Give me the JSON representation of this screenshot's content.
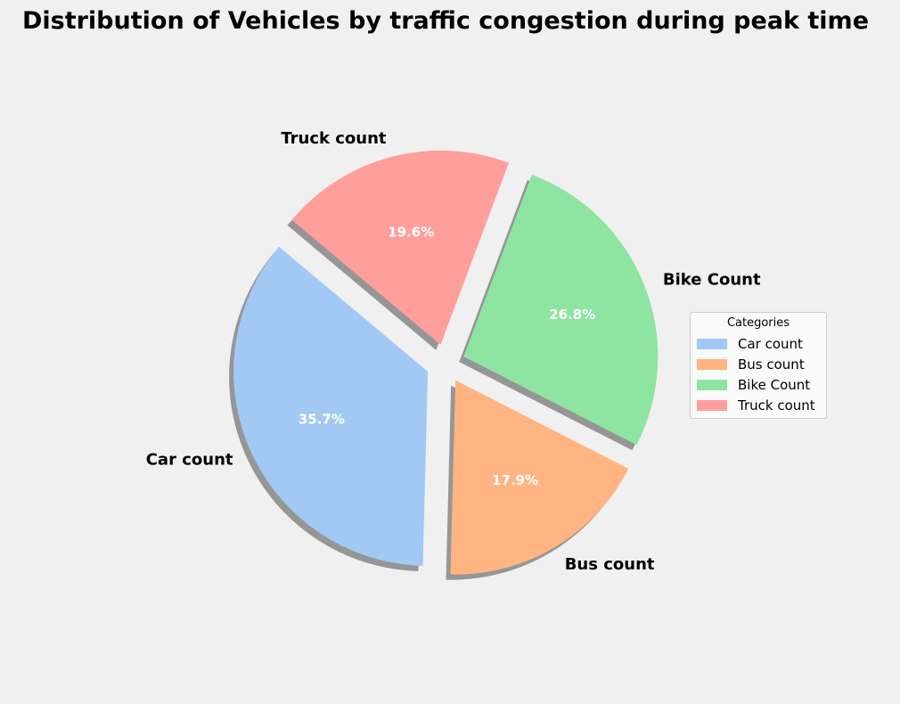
{
  "chart_data": {
    "type": "pie",
    "title": "Distribution of Vehicles by traffic congestion during peak time",
    "categories": [
      "Car count",
      "Bus count",
      "Bike Count",
      "Truck count"
    ],
    "values": [
      35.7,
      17.9,
      26.8,
      19.6
    ],
    "percent_labels": [
      "35.7%",
      "17.9%",
      "26.8%",
      "19.6%"
    ],
    "colors": [
      "#a1c9f4",
      "#ffb482",
      "#8de5a1",
      "#ff9f9b"
    ],
    "explode": [
      0.1,
      0.1,
      0.1,
      0.1
    ],
    "shadow": true,
    "legend": {
      "title": "Categories",
      "placement": "center-right"
    }
  }
}
